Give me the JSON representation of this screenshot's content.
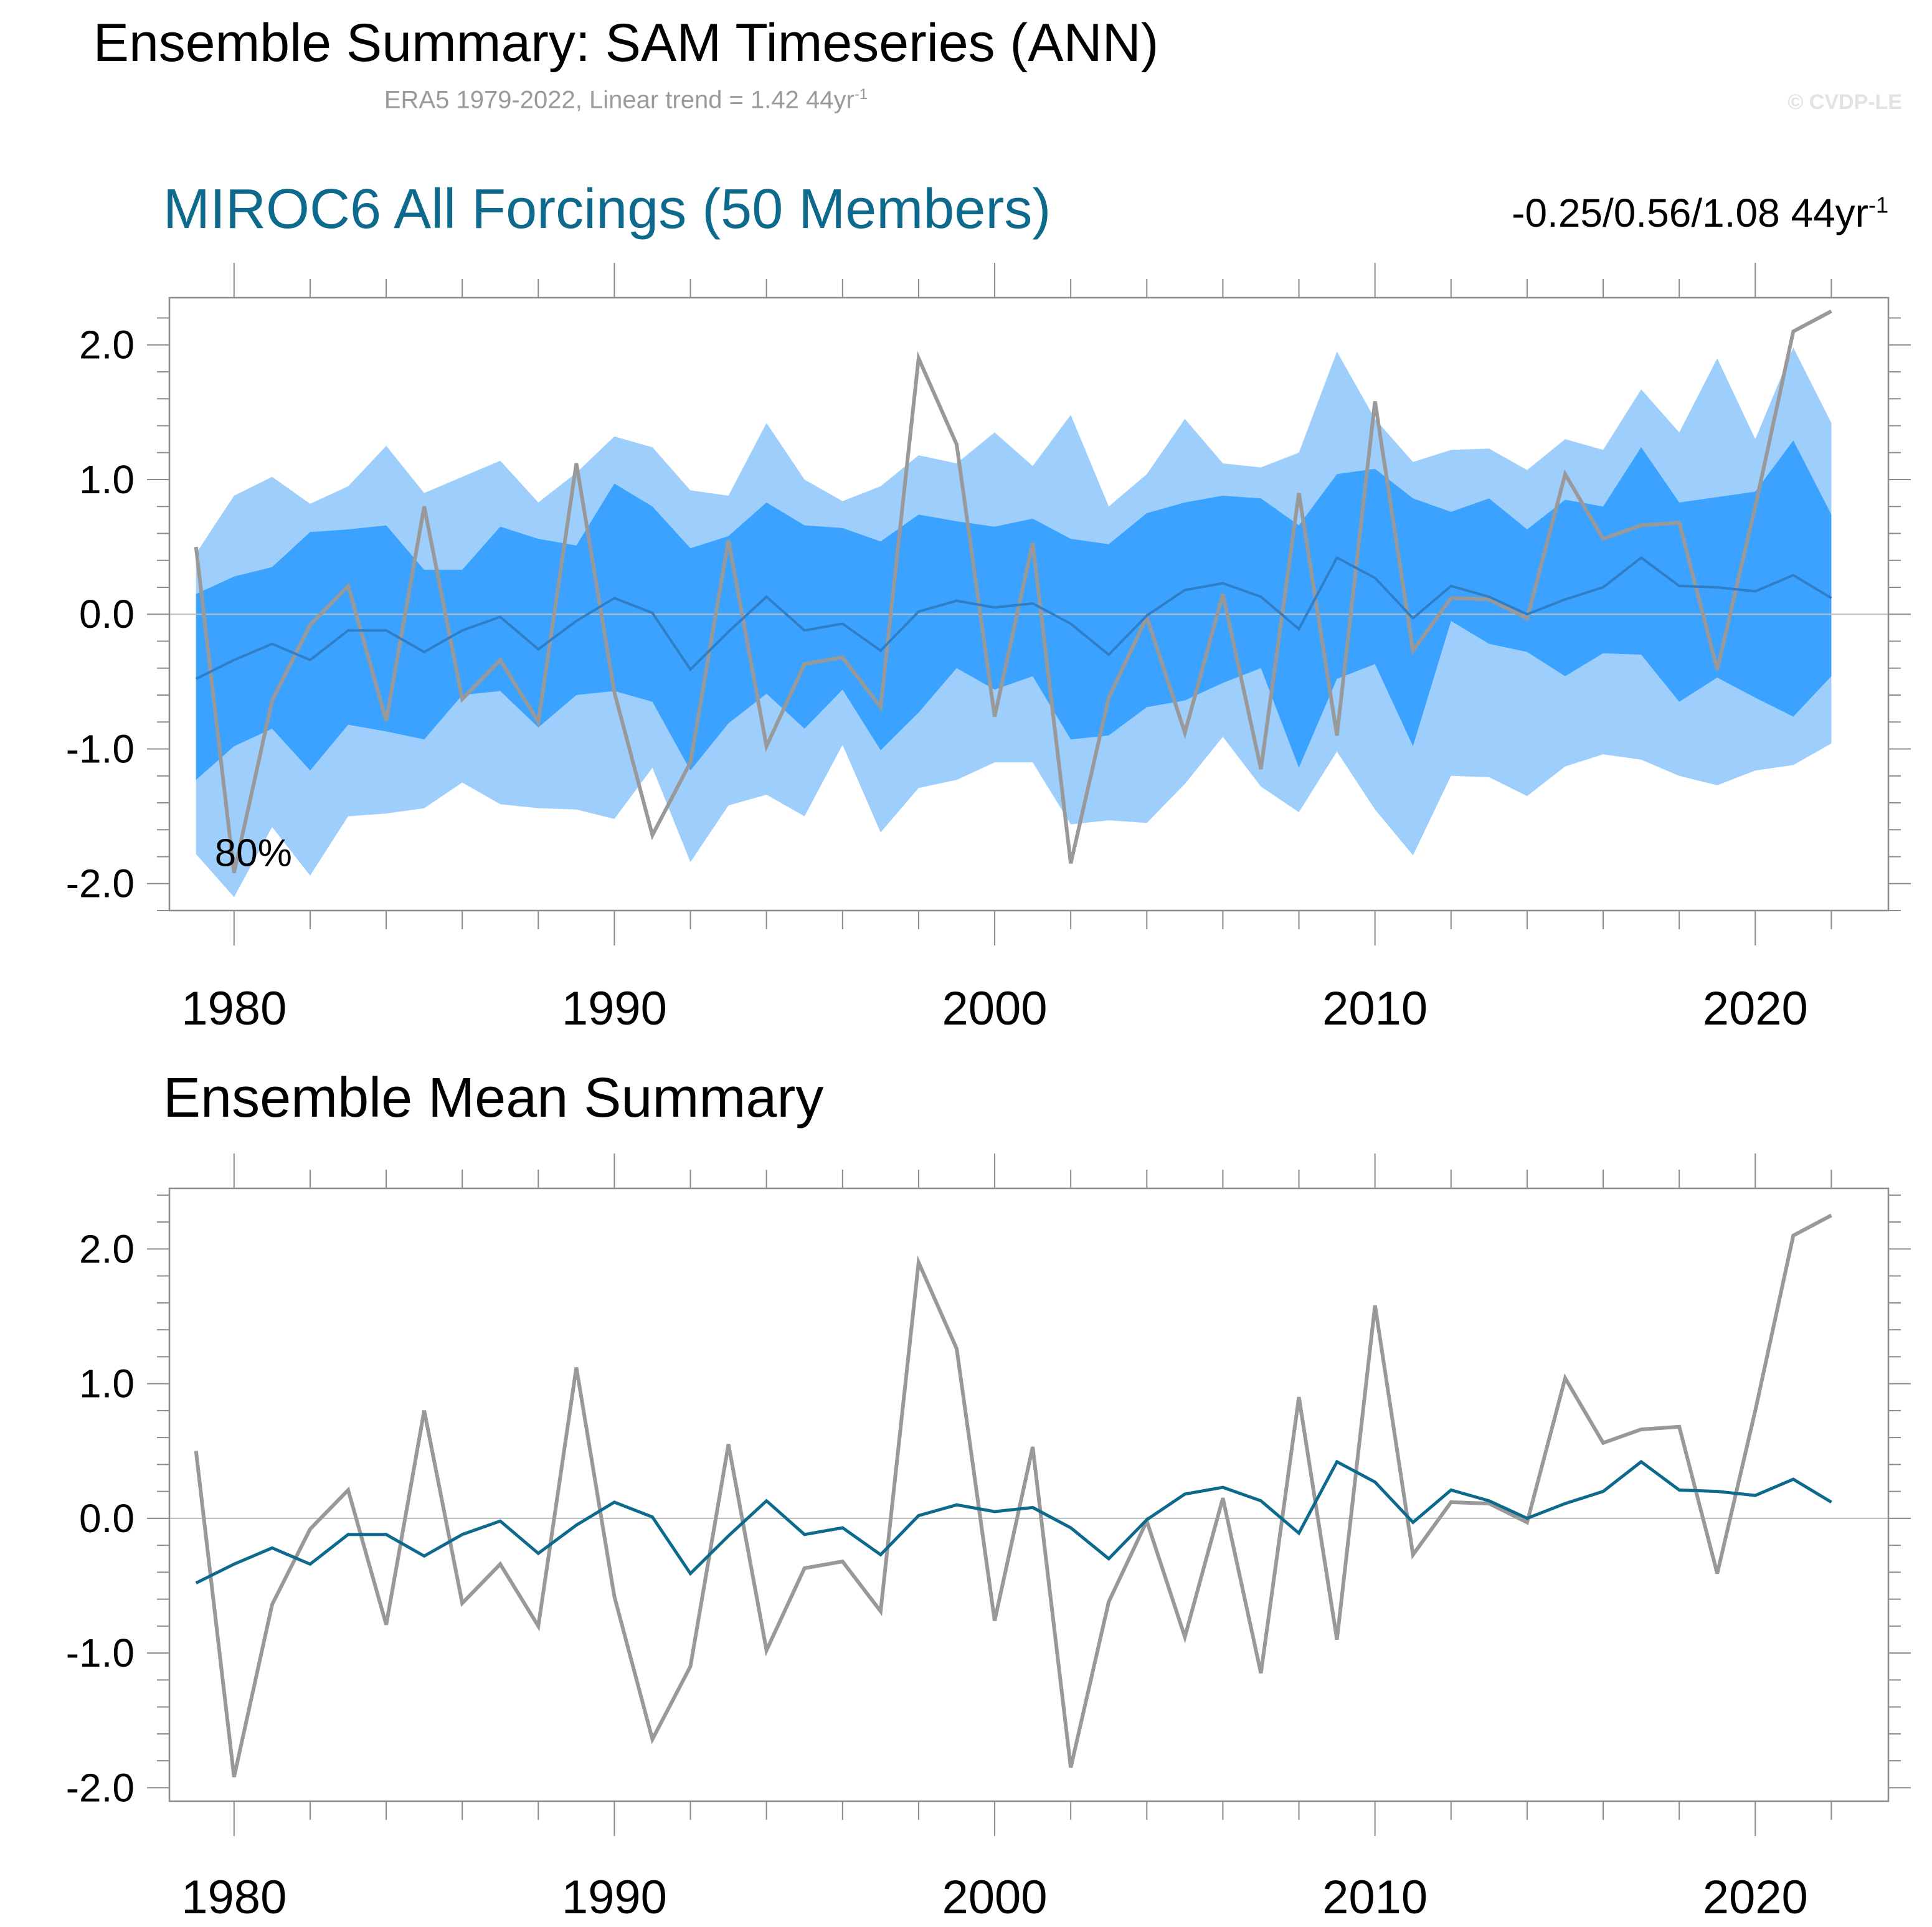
{
  "header": {
    "title": "Ensemble Summary: SAM Timeseries (ANN)",
    "subtitle": "ERA5 1979-2022, Linear trend = 1.42 44yr",
    "subtitle_unit_exp": "-1",
    "copyright": "© CVDP-LE"
  },
  "colors": {
    "outer_band": "#9ecffc",
    "inner_band": "#3ba3ff",
    "ensemble_mean_top": "#2e7fc8",
    "ensemble_mean_bottom": "#0e6a8c",
    "observations": "#999999",
    "title_blue": "#0e6a8c"
  },
  "chart_data": [
    {
      "type": "area",
      "title": "MIROC6 All Forcings (50 Members)",
      "stats_label": "-0.25/0.56/1.08 44yr",
      "stats_unit_exp": "-1",
      "band_label": "80%",
      "x": [
        1979,
        1980,
        1981,
        1982,
        1983,
        1984,
        1985,
        1986,
        1987,
        1988,
        1989,
        1990,
        1991,
        1992,
        1993,
        1994,
        1995,
        1996,
        1997,
        1998,
        1999,
        2000,
        2001,
        2002,
        2003,
        2004,
        2005,
        2006,
        2007,
        2008,
        2009,
        2010,
        2011,
        2012,
        2013,
        2014,
        2015,
        2016,
        2017,
        2018,
        2019,
        2020,
        2021,
        2022
      ],
      "xlim": [
        1978.3,
        2023.5
      ],
      "ylim": [
        -2.2,
        2.35
      ],
      "x_ticks": [
        1980,
        1990,
        2000,
        2010,
        2020
      ],
      "x_tick_labels": [
        "1980",
        "1990",
        "2000",
        "2010",
        "2020"
      ],
      "y_ticks": [
        -2.0,
        -1.0,
        0.0,
        1.0,
        2.0
      ],
      "y_tick_labels": [
        "-2.0",
        "-1.0",
        "0.0",
        "1.0",
        "2.0"
      ],
      "series": [
        {
          "name": "outer_upper",
          "values": [
            0.45,
            0.88,
            1.02,
            0.82,
            0.95,
            1.25,
            0.9,
            1.02,
            1.14,
            0.83,
            1.05,
            1.32,
            1.24,
            0.92,
            0.88,
            1.42,
            1.0,
            0.84,
            0.95,
            1.18,
            1.12,
            1.35,
            1.1,
            1.48,
            0.8,
            1.04,
            1.45,
            1.12,
            1.09,
            1.2,
            1.95,
            1.45,
            1.13,
            1.22,
            1.23,
            1.07,
            1.3,
            1.22,
            1.67,
            1.35,
            1.9,
            1.3,
            1.98,
            1.42
          ]
        },
        {
          "name": "inner_upper",
          "values": [
            0.15,
            0.28,
            0.35,
            0.61,
            0.63,
            0.66,
            0.33,
            0.33,
            0.65,
            0.56,
            0.51,
            0.97,
            0.8,
            0.49,
            0.58,
            0.83,
            0.66,
            0.64,
            0.54,
            0.74,
            0.69,
            0.65,
            0.71,
            0.56,
            0.52,
            0.75,
            0.83,
            0.88,
            0.86,
            0.66,
            1.04,
            1.08,
            0.86,
            0.76,
            0.86,
            0.63,
            0.85,
            0.8,
            1.24,
            0.83,
            0.87,
            0.91,
            1.29,
            0.74
          ]
        },
        {
          "name": "inner_lower",
          "values": [
            -1.23,
            -0.98,
            -0.85,
            -1.16,
            -0.82,
            -0.87,
            -0.93,
            -0.6,
            -0.57,
            -0.84,
            -0.6,
            -0.57,
            -0.65,
            -1.16,
            -0.81,
            -0.59,
            -0.85,
            -0.56,
            -1.01,
            -0.73,
            -0.4,
            -0.56,
            -0.46,
            -0.93,
            -0.9,
            -0.69,
            -0.64,
            -0.51,
            -0.4,
            -1.14,
            -0.48,
            -0.37,
            -0.98,
            -0.05,
            -0.22,
            -0.28,
            -0.46,
            -0.29,
            -0.3,
            -0.65,
            -0.47,
            -0.62,
            -0.76,
            -0.46
          ]
        },
        {
          "name": "outer_lower",
          "values": [
            -1.78,
            -2.1,
            -1.58,
            -1.94,
            -1.5,
            -1.48,
            -1.44,
            -1.25,
            -1.41,
            -1.44,
            -1.45,
            -1.52,
            -1.14,
            -1.84,
            -1.42,
            -1.34,
            -1.5,
            -0.97,
            -1.62,
            -1.29,
            -1.23,
            -1.1,
            -1.1,
            -1.56,
            -1.53,
            -1.55,
            -1.26,
            -0.91,
            -1.28,
            -1.47,
            -1.02,
            -1.45,
            -1.79,
            -1.2,
            -1.21,
            -1.35,
            -1.13,
            -1.04,
            -1.08,
            -1.2,
            -1.27,
            -1.16,
            -1.12,
            -0.96
          ]
        },
        {
          "name": "ensemble_mean",
          "values": [
            -0.48,
            -0.34,
            -0.22,
            -0.34,
            -0.12,
            -0.12,
            -0.28,
            -0.12,
            -0.02,
            -0.26,
            -0.05,
            0.12,
            0.01,
            -0.41,
            -0.13,
            0.13,
            -0.12,
            -0.07,
            -0.27,
            0.02,
            0.1,
            0.05,
            0.08,
            -0.07,
            -0.3,
            -0.01,
            0.18,
            0.23,
            0.13,
            -0.11,
            0.42,
            0.27,
            -0.03,
            0.21,
            0.13,
            0.0,
            0.11,
            0.2,
            0.42,
            0.21,
            0.2,
            0.17,
            0.29,
            0.12
          ]
        },
        {
          "name": "ERA5",
          "values": [
            0.5,
            -1.92,
            -0.64,
            -0.08,
            0.21,
            -0.79,
            0.8,
            -0.63,
            -0.34,
            -0.8,
            1.12,
            -0.58,
            -1.64,
            -1.1,
            0.55,
            -0.98,
            -0.37,
            -0.32,
            -0.69,
            1.9,
            1.26,
            -0.76,
            0.53,
            -1.85,
            -0.62,
            -0.02,
            -0.88,
            0.15,
            -1.15,
            0.9,
            -0.9,
            1.58,
            -0.27,
            0.12,
            0.11,
            -0.03,
            1.04,
            0.56,
            0.66,
            0.68,
            -0.41,
            0.8,
            2.1,
            2.25
          ]
        }
      ]
    },
    {
      "type": "line",
      "title": "Ensemble Mean Summary",
      "x": [
        1979,
        1980,
        1981,
        1982,
        1983,
        1984,
        1985,
        1986,
        1987,
        1988,
        1989,
        1990,
        1991,
        1992,
        1993,
        1994,
        1995,
        1996,
        1997,
        1998,
        1999,
        2000,
        2001,
        2002,
        2003,
        2004,
        2005,
        2006,
        2007,
        2008,
        2009,
        2010,
        2011,
        2012,
        2013,
        2014,
        2015,
        2016,
        2017,
        2018,
        2019,
        2020,
        2021,
        2022
      ],
      "xlim": [
        1978.3,
        2023.5
      ],
      "ylim": [
        -2.1,
        2.45
      ],
      "x_ticks": [
        1980,
        1990,
        2000,
        2010,
        2020
      ],
      "x_tick_labels": [
        "1980",
        "1990",
        "2000",
        "2010",
        "2020"
      ],
      "y_ticks": [
        -2.0,
        -1.0,
        0.0,
        1.0,
        2.0
      ],
      "y_tick_labels": [
        "-2.0",
        "-1.0",
        "0.0",
        "1.0",
        "2.0"
      ],
      "series": [
        {
          "name": "ensemble_mean",
          "values": [
            -0.48,
            -0.34,
            -0.22,
            -0.34,
            -0.12,
            -0.12,
            -0.28,
            -0.12,
            -0.02,
            -0.26,
            -0.05,
            0.12,
            0.01,
            -0.41,
            -0.13,
            0.13,
            -0.12,
            -0.07,
            -0.27,
            0.02,
            0.1,
            0.05,
            0.08,
            -0.07,
            -0.3,
            -0.01,
            0.18,
            0.23,
            0.13,
            -0.11,
            0.42,
            0.27,
            -0.03,
            0.21,
            0.13,
            0.0,
            0.11,
            0.2,
            0.42,
            0.21,
            0.2,
            0.17,
            0.29,
            0.12
          ]
        },
        {
          "name": "ERA5",
          "values": [
            0.5,
            -1.92,
            -0.64,
            -0.08,
            0.21,
            -0.79,
            0.8,
            -0.63,
            -0.34,
            -0.8,
            1.12,
            -0.58,
            -1.64,
            -1.1,
            0.55,
            -0.98,
            -0.37,
            -0.32,
            -0.69,
            1.9,
            1.26,
            -0.76,
            0.53,
            -1.85,
            -0.62,
            -0.02,
            -0.88,
            0.15,
            -1.15,
            0.9,
            -0.9,
            1.58,
            -0.27,
            0.12,
            0.11,
            -0.03,
            1.04,
            0.56,
            0.66,
            0.68,
            -0.41,
            0.8,
            2.1,
            2.25
          ]
        }
      ]
    }
  ]
}
